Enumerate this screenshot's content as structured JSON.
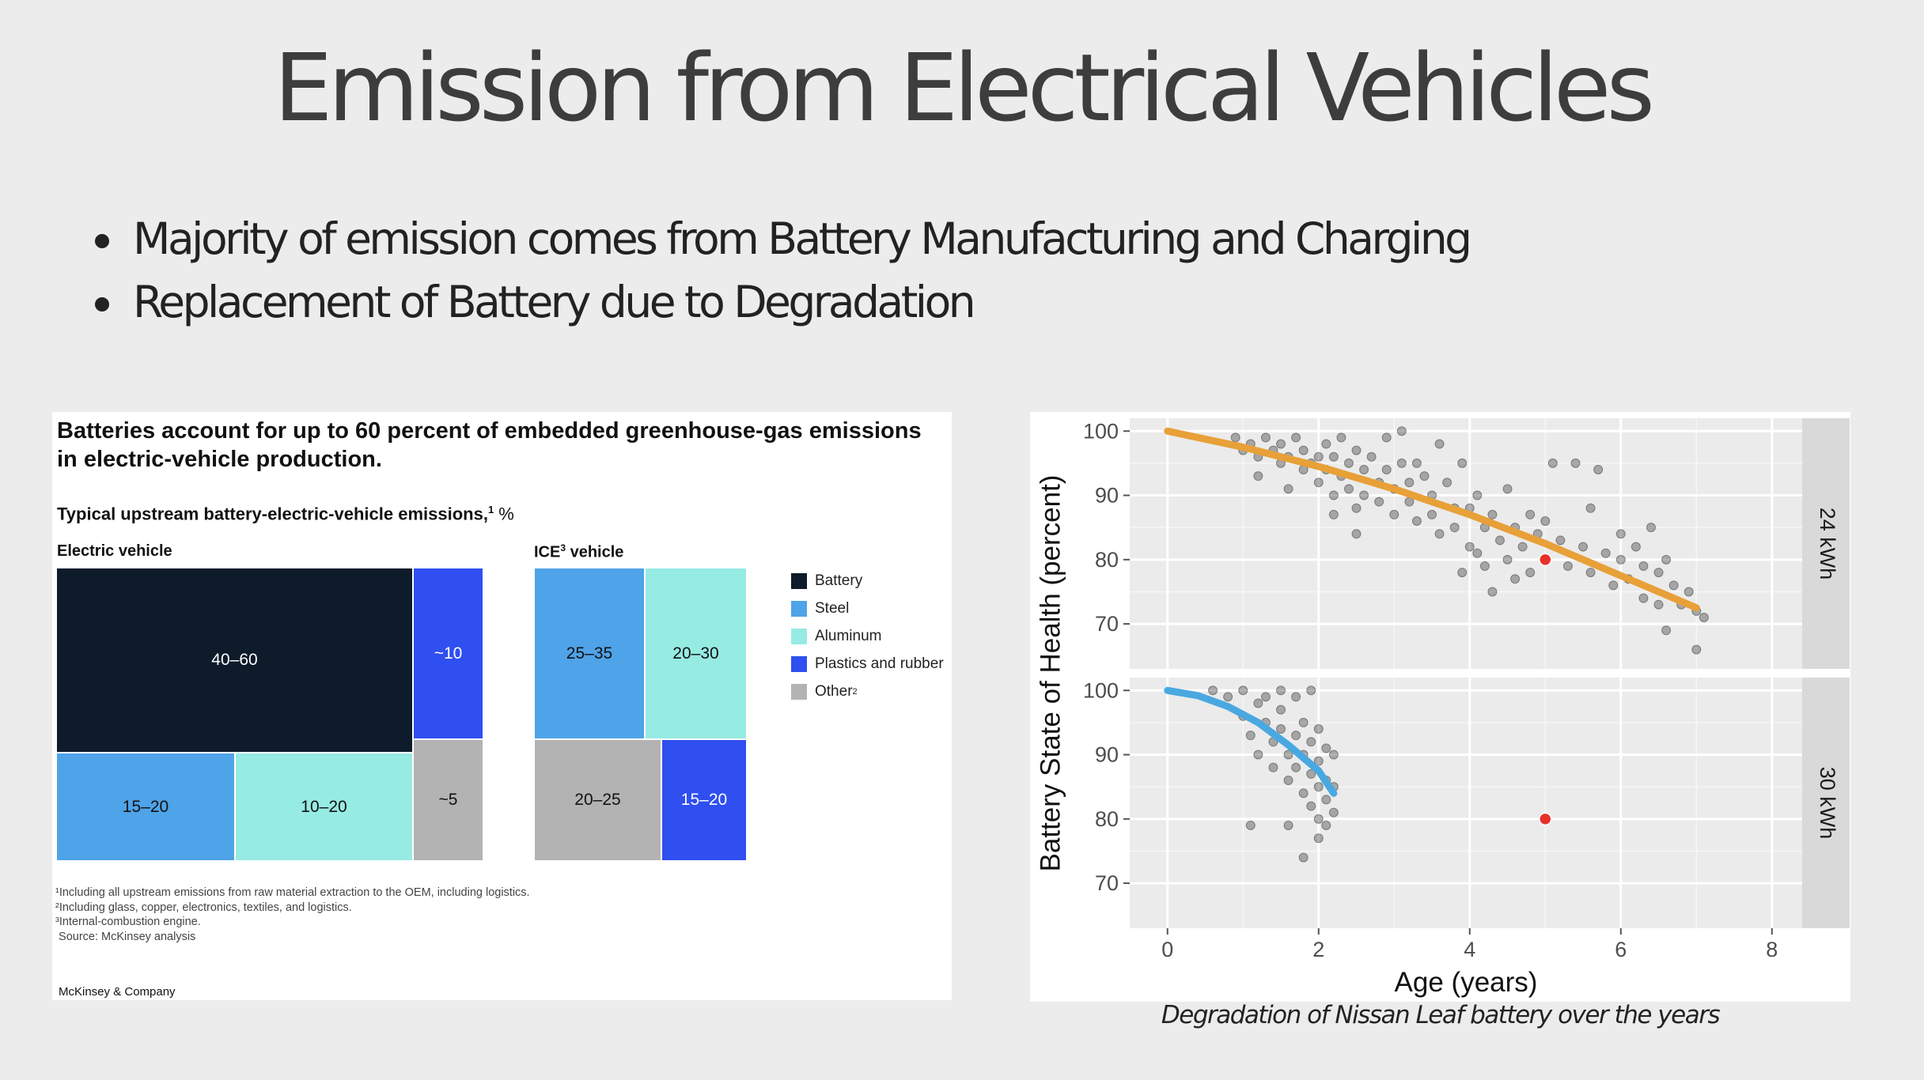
{
  "slide": {
    "title": "Emission from Electrical Vehicles",
    "bullets": [
      "Majority of emission comes from Battery Manufacturing and Charging",
      "Replacement of Battery due to Degradation"
    ],
    "caption": "Degradation of Nissan Leaf battery over the years"
  },
  "mckinsey": {
    "headline": "Batteries account for up to 60 percent of embedded greenhouse-gas emissions in electric-vehicle production.",
    "subtitle": "Typical upstream battery-electric-vehicle emissions,",
    "subtitle_sup": "1",
    "subtitle_unit": " %",
    "ev_label": "Electric vehicle",
    "ice_label_pre": "ICE",
    "ice_label_sup": "3",
    "ice_label_post": " vehicle",
    "legend": [
      {
        "name": "Battery",
        "sup": "",
        "color": "#0d1b2a"
      },
      {
        "name": "Steel",
        "sup": "",
        "color": "#4fa3e8"
      },
      {
        "name": "Aluminum",
        "sup": "",
        "color": "#96ebe3"
      },
      {
        "name": "Plastics and rubber",
        "sup": "",
        "color": "#2f4ff0"
      },
      {
        "name": "Other",
        "sup": "2",
        "color": "#b3b3b3"
      }
    ],
    "ev_tiles": {
      "battery": "40–60",
      "plastics": "~10",
      "steel": "15–20",
      "aluminum": "10–20",
      "other": "~5"
    },
    "ice_tiles": {
      "steel": "25–35",
      "aluminum": "20–30",
      "other": "20–25",
      "plastics": "15–20"
    },
    "footnotes": [
      "¹Including all upstream emissions from raw material extraction to the OEM, including logistics.",
      "²Including glass, copper, electronics, textiles, and logistics.",
      "³Internal-combustion engine.",
      " Source: McKinsey analysis"
    ],
    "brand": "McKinsey & Company"
  },
  "chart_data": {
    "type": "scatter",
    "xlabel": "Age (years)",
    "ylabel": "Battery State of Health (percent)",
    "xlim": [
      -0.5,
      8.4
    ],
    "xticks": [
      0,
      2,
      4,
      6,
      8
    ],
    "yticks": [
      70,
      80,
      90,
      100
    ],
    "grid": true,
    "panels": [
      {
        "name": "24 kWh",
        "ylim": [
          63,
          102
        ],
        "trend_color": "#e8a038",
        "trend": [
          [
            0,
            100
          ],
          [
            1,
            97.5
          ],
          [
            2,
            94.5
          ],
          [
            3,
            91
          ],
          [
            4,
            87
          ],
          [
            5,
            82.5
          ],
          [
            6,
            77.5
          ],
          [
            7,
            72.5
          ]
        ],
        "highlight": [
          5,
          80
        ],
        "scatter_color": "#222222",
        "scatter": [
          [
            0.9,
            99
          ],
          [
            1.0,
            97
          ],
          [
            1.1,
            98
          ],
          [
            1.2,
            96
          ],
          [
            1.3,
            99
          ],
          [
            1.4,
            97
          ],
          [
            1.5,
            95
          ],
          [
            1.5,
            98
          ],
          [
            1.6,
            96
          ],
          [
            1.7,
            99
          ],
          [
            1.8,
            94
          ],
          [
            1.8,
            97
          ],
          [
            1.9,
            95
          ],
          [
            2.0,
            96
          ],
          [
            2.0,
            92
          ],
          [
            2.1,
            98
          ],
          [
            2.1,
            94
          ],
          [
            2.2,
            90
          ],
          [
            2.2,
            96
          ],
          [
            2.3,
            93
          ],
          [
            2.3,
            99
          ],
          [
            2.4,
            95
          ],
          [
            2.4,
            91
          ],
          [
            2.5,
            97
          ],
          [
            2.5,
            88
          ],
          [
            2.6,
            94
          ],
          [
            2.6,
            90
          ],
          [
            2.7,
            96
          ],
          [
            2.8,
            92
          ],
          [
            2.8,
            89
          ],
          [
            2.9,
            94
          ],
          [
            3.0,
            91
          ],
          [
            3.0,
            87
          ],
          [
            3.1,
            95
          ],
          [
            3.2,
            89
          ],
          [
            3.2,
            92
          ],
          [
            3.3,
            86
          ],
          [
            3.4,
            93
          ],
          [
            3.5,
            90
          ],
          [
            3.5,
            87
          ],
          [
            3.6,
            84
          ],
          [
            3.7,
            92
          ],
          [
            3.8,
            88
          ],
          [
            3.8,
            85
          ],
          [
            3.9,
            95
          ],
          [
            4.0,
            88
          ],
          [
            4.0,
            82
          ],
          [
            4.1,
            90
          ],
          [
            4.2,
            85
          ],
          [
            4.2,
            79
          ],
          [
            4.3,
            87
          ],
          [
            4.4,
            83
          ],
          [
            4.5,
            91
          ],
          [
            4.5,
            80
          ],
          [
            4.6,
            85
          ],
          [
            4.7,
            82
          ],
          [
            4.8,
            78
          ],
          [
            4.8,
            87
          ],
          [
            4.9,
            84
          ],
          [
            5.0,
            86
          ],
          [
            5.0,
            80
          ],
          [
            5.1,
            95
          ],
          [
            5.2,
            83
          ],
          [
            5.3,
            79
          ],
          [
            5.4,
            95
          ],
          [
            5.5,
            82
          ],
          [
            5.6,
            78
          ],
          [
            5.6,
            88
          ],
          [
            5.7,
            94
          ],
          [
            5.8,
            81
          ],
          [
            5.9,
            76
          ],
          [
            6.0,
            80
          ],
          [
            6.0,
            84
          ],
          [
            6.1,
            77
          ],
          [
            6.2,
            82
          ],
          [
            6.3,
            79
          ],
          [
            6.3,
            74
          ],
          [
            6.4,
            85
          ],
          [
            6.5,
            78
          ],
          [
            6.5,
            73
          ],
          [
            6.6,
            80
          ],
          [
            6.6,
            69
          ],
          [
            6.7,
            76
          ],
          [
            6.8,
            73
          ],
          [
            6.9,
            75
          ],
          [
            7.0,
            72
          ],
          [
            7.0,
            66
          ],
          [
            7.1,
            71
          ],
          [
            2.5,
            84
          ],
          [
            3.9,
            78
          ],
          [
            4.1,
            81
          ],
          [
            4.3,
            75
          ],
          [
            4.6,
            77
          ],
          [
            1.2,
            93
          ],
          [
            1.6,
            91
          ],
          [
            2.2,
            87
          ],
          [
            3.3,
            95
          ],
          [
            3.6,
            98
          ],
          [
            2.9,
            99
          ],
          [
            3.1,
            100
          ]
        ]
      },
      {
        "name": "30 kWh",
        "ylim": [
          63,
          102
        ],
        "trend_color": "#4aa8e0",
        "trend": [
          [
            0,
            100
          ],
          [
            0.4,
            99.2
          ],
          [
            0.8,
            97.5
          ],
          [
            1.2,
            95
          ],
          [
            1.6,
            91.5
          ],
          [
            2.0,
            87.5
          ],
          [
            2.2,
            84
          ]
        ],
        "highlight": [
          5,
          80
        ],
        "scatter_color": "#222222",
        "scatter": [
          [
            0.6,
            100
          ],
          [
            0.8,
            99
          ],
          [
            1.0,
            100
          ],
          [
            1.0,
            96
          ],
          [
            1.1,
            93
          ],
          [
            1.2,
            98
          ],
          [
            1.2,
            90
          ],
          [
            1.3,
            95
          ],
          [
            1.3,
            99
          ],
          [
            1.4,
            92
          ],
          [
            1.4,
            88
          ],
          [
            1.5,
            97
          ],
          [
            1.5,
            94
          ],
          [
            1.6,
            90
          ],
          [
            1.6,
            86
          ],
          [
            1.7,
            99
          ],
          [
            1.7,
            93
          ],
          [
            1.7,
            88
          ],
          [
            1.8,
            95
          ],
          [
            1.8,
            90
          ],
          [
            1.8,
            84
          ],
          [
            1.9,
            92
          ],
          [
            1.9,
            87
          ],
          [
            1.9,
            82
          ],
          [
            2.0,
            94
          ],
          [
            2.0,
            89
          ],
          [
            2.0,
            85
          ],
          [
            2.0,
            80
          ],
          [
            2.1,
            91
          ],
          [
            2.1,
            86
          ],
          [
            2.1,
            83
          ],
          [
            2.1,
            79
          ],
          [
            2.2,
            90
          ],
          [
            2.2,
            85
          ],
          [
            2.2,
            81
          ],
          [
            1.1,
            79
          ],
          [
            1.6,
            79
          ],
          [
            1.8,
            74
          ],
          [
            2.0,
            77
          ],
          [
            1.5,
            100
          ],
          [
            1.9,
            100
          ]
        ]
      }
    ]
  }
}
